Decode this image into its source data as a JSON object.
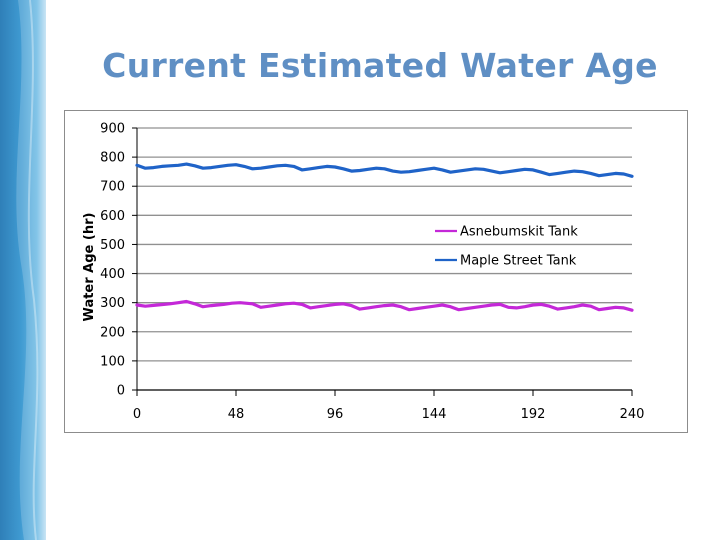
{
  "slide": {
    "title": "Current Estimated Water Age"
  },
  "colors": {
    "title": "#5f8fc4",
    "asnebumskit": "#c428d8",
    "maple": "#1f63c8",
    "grid": "#909090"
  },
  "chart_data": {
    "type": "line",
    "title": "",
    "xlabel": "",
    "ylabel": "Water Age (hr)",
    "xlim": [
      0,
      240
    ],
    "ylim": [
      0,
      900
    ],
    "xticks": [
      0,
      48,
      96,
      144,
      192,
      240
    ],
    "yticks": [
      0,
      100,
      200,
      300,
      400,
      500,
      600,
      700,
      800,
      900
    ],
    "grid": true,
    "legend_position": "right-middle",
    "series": [
      {
        "name": "Asnebumskit Tank",
        "color": "#c428d8",
        "x": [
          0,
          4,
          10,
          16,
          20,
          24,
          28,
          32,
          36,
          42,
          46,
          50,
          56,
          60,
          64,
          68,
          72,
          76,
          80,
          84,
          88,
          92,
          96,
          100,
          104,
          108,
          112,
          116,
          120,
          124,
          128,
          132,
          136,
          140,
          144,
          148,
          152,
          156,
          160,
          164,
          168,
          172,
          176,
          180,
          184,
          188,
          192,
          196,
          200,
          204,
          208,
          212,
          216,
          220,
          224,
          228,
          232,
          236,
          240
        ],
        "values": [
          292,
          288,
          292,
          296,
          300,
          304,
          296,
          286,
          290,
          294,
          298,
          300,
          296,
          284,
          288,
          292,
          296,
          298,
          294,
          282,
          286,
          290,
          294,
          296,
          290,
          278,
          282,
          286,
          290,
          292,
          286,
          276,
          280,
          284,
          288,
          292,
          286,
          276,
          280,
          284,
          288,
          292,
          294,
          284,
          282,
          286,
          292,
          294,
          288,
          278,
          282,
          286,
          292,
          288,
          276,
          280,
          284,
          282,
          274
        ]
      },
      {
        "name": "Maple Street Tank",
        "color": "#1f63c8",
        "x": [
          0,
          4,
          8,
          12,
          16,
          20,
          24,
          28,
          32,
          36,
          40,
          44,
          48,
          52,
          56,
          60,
          64,
          68,
          72,
          76,
          80,
          84,
          88,
          92,
          96,
          100,
          104,
          108,
          112,
          116,
          120,
          124,
          128,
          132,
          136,
          140,
          144,
          148,
          152,
          156,
          160,
          164,
          168,
          172,
          176,
          180,
          184,
          188,
          192,
          196,
          200,
          204,
          208,
          212,
          216,
          220,
          224,
          228,
          232,
          236,
          240
        ],
        "values": [
          772,
          762,
          764,
          768,
          770,
          772,
          776,
          770,
          762,
          764,
          768,
          772,
          774,
          768,
          760,
          762,
          766,
          770,
          772,
          768,
          756,
          760,
          764,
          768,
          766,
          760,
          752,
          754,
          758,
          762,
          760,
          752,
          748,
          750,
          754,
          758,
          762,
          756,
          748,
          752,
          756,
          760,
          758,
          752,
          746,
          750,
          754,
          758,
          756,
          748,
          740,
          744,
          748,
          752,
          750,
          744,
          736,
          740,
          744,
          742,
          734
        ]
      }
    ]
  }
}
